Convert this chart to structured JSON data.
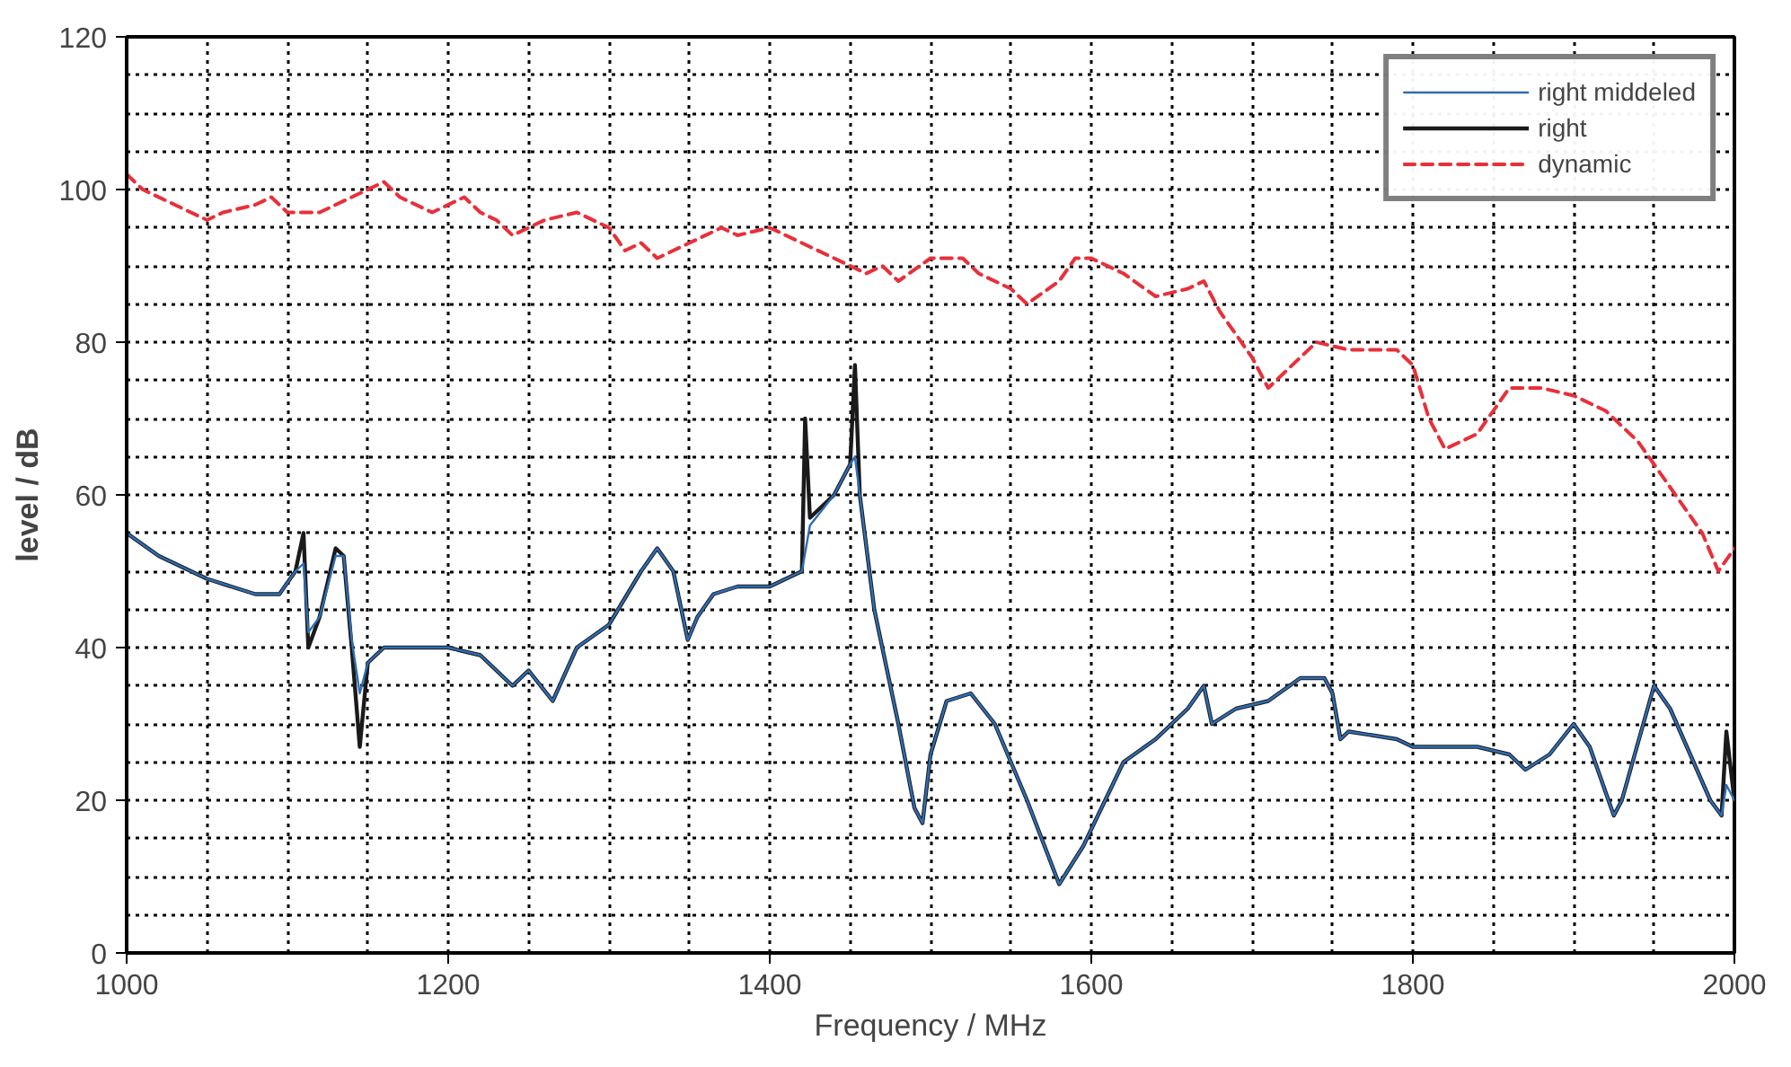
{
  "chart_data": {
    "type": "line",
    "xlabel": "Frequency / MHz",
    "ylabel": "level / dB",
    "xlim": [
      1000,
      2000
    ],
    "ylim": [
      0,
      120
    ],
    "xticks": [
      1000,
      1200,
      1400,
      1600,
      1800,
      2000
    ],
    "yticks": [
      0,
      20,
      40,
      60,
      80,
      100,
      120
    ],
    "grid": true,
    "legend": "top right",
    "series": [
      {
        "name": "right middeled",
        "color": "#2e6db4",
        "line_style": "solid",
        "x": [
          1000,
          1020,
          1050,
          1080,
          1095,
          1105,
          1110,
          1113,
          1120,
          1130,
          1135,
          1140,
          1145,
          1150,
          1160,
          1200,
          1220,
          1240,
          1250,
          1265,
          1280,
          1300,
          1320,
          1330,
          1340,
          1349,
          1355,
          1365,
          1380,
          1400,
          1420,
          1425,
          1440,
          1450,
          1453,
          1456,
          1465,
          1480,
          1490,
          1495,
          1500,
          1510,
          1525,
          1540,
          1560,
          1580,
          1595,
          1620,
          1640,
          1660,
          1670,
          1675,
          1690,
          1710,
          1730,
          1745,
          1750,
          1755,
          1760,
          1790,
          1800,
          1840,
          1860,
          1870,
          1885,
          1900,
          1910,
          1925,
          1930,
          1950,
          1960,
          1985,
          1992,
          1995,
          2000
        ],
        "values": [
          55,
          52,
          49,
          47,
          47,
          50,
          51,
          42,
          44,
          52,
          52,
          41,
          34,
          38,
          40,
          40,
          39,
          35,
          37,
          33,
          40,
          43,
          50,
          53,
          50,
          41,
          44,
          47,
          48,
          48,
          50,
          56,
          60,
          64,
          65,
          60,
          45,
          30,
          19,
          17,
          26,
          33,
          34,
          30,
          20,
          9,
          14,
          25,
          28,
          32,
          35,
          30,
          32,
          33,
          36,
          36,
          34,
          28,
          29,
          28,
          27,
          27,
          26,
          24,
          26,
          30,
          27,
          18,
          20,
          35,
          32,
          20,
          18,
          22,
          20
        ]
      },
      {
        "name": "right",
        "color": "#1a1a1a",
        "line_style": "solid",
        "x": [
          1000,
          1020,
          1050,
          1080,
          1095,
          1105,
          1110,
          1113,
          1120,
          1130,
          1135,
          1140,
          1145,
          1150,
          1160,
          1200,
          1220,
          1240,
          1250,
          1265,
          1280,
          1300,
          1320,
          1330,
          1340,
          1349,
          1355,
          1365,
          1380,
          1400,
          1420,
          1422,
          1425,
          1440,
          1450,
          1453,
          1456,
          1465,
          1480,
          1490,
          1495,
          1500,
          1510,
          1525,
          1540,
          1560,
          1580,
          1595,
          1620,
          1640,
          1660,
          1670,
          1675,
          1690,
          1710,
          1730,
          1745,
          1750,
          1755,
          1760,
          1790,
          1800,
          1840,
          1860,
          1870,
          1885,
          1900,
          1910,
          1925,
          1930,
          1950,
          1960,
          1985,
          1992,
          1995,
          2000
        ],
        "values": [
          55,
          52,
          49,
          47,
          47,
          50,
          55,
          40,
          44,
          53,
          52,
          40,
          27,
          38,
          40,
          40,
          39,
          35,
          37,
          33,
          40,
          43,
          50,
          53,
          50,
          41,
          44,
          47,
          48,
          48,
          50,
          70,
          57,
          60,
          64,
          77,
          60,
          45,
          30,
          19,
          17,
          26,
          33,
          34,
          30,
          20,
          9,
          14,
          25,
          28,
          32,
          35,
          30,
          32,
          33,
          36,
          36,
          34,
          28,
          29,
          28,
          27,
          27,
          26,
          24,
          26,
          30,
          27,
          18,
          20,
          35,
          32,
          20,
          18,
          29,
          20
        ]
      },
      {
        "name": "dynamic",
        "color": "#e8303a",
        "line_style": "dashed",
        "x": [
          1000,
          1010,
          1030,
          1050,
          1060,
          1080,
          1090,
          1100,
          1120,
          1140,
          1160,
          1170,
          1190,
          1210,
          1220,
          1230,
          1240,
          1260,
          1280,
          1300,
          1310,
          1320,
          1330,
          1350,
          1370,
          1380,
          1400,
          1420,
          1440,
          1460,
          1470,
          1480,
          1500,
          1520,
          1530,
          1550,
          1560,
          1580,
          1590,
          1600,
          1620,
          1640,
          1660,
          1670,
          1680,
          1700,
          1710,
          1720,
          1740,
          1760,
          1790,
          1800,
          1810,
          1820,
          1840,
          1860,
          1880,
          1900,
          1920,
          1940,
          1960,
          1980,
          1990,
          2000
        ],
        "values": [
          102,
          100,
          98,
          96,
          97,
          98,
          99,
          97,
          97,
          99,
          101,
          99,
          97,
          99,
          97,
          96,
          94,
          96,
          97,
          95,
          92,
          93,
          91,
          93,
          95,
          94,
          95,
          93,
          91,
          89,
          90,
          88,
          91,
          91,
          89,
          87,
          85,
          88,
          91,
          91,
          89,
          86,
          87,
          88,
          84,
          78,
          74,
          76,
          80,
          79,
          79,
          77,
          70,
          66,
          68,
          74,
          74,
          73,
          71,
          67,
          61,
          55,
          50,
          53
        ]
      }
    ]
  }
}
